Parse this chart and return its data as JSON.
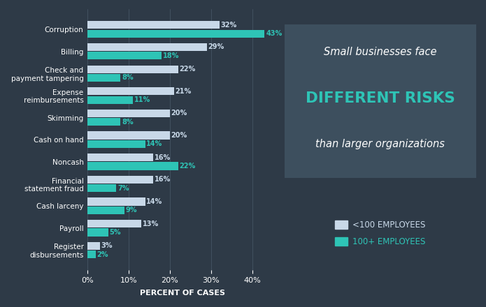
{
  "categories": [
    "Register\ndisbursements",
    "Payroll",
    "Cash larceny",
    "Financial\nstatement fraud",
    "Noncash",
    "Cash on hand",
    "Skimming",
    "Expense\nreimbursements",
    "Check and\npayment tampering",
    "Billing",
    "Corruption"
  ],
  "less100": [
    3,
    13,
    14,
    16,
    16,
    20,
    20,
    21,
    22,
    29,
    32
  ],
  "more100": [
    2,
    5,
    9,
    7,
    22,
    14,
    8,
    11,
    8,
    18,
    43
  ],
  "bg_color": "#2e3a47",
  "bar_color_less100": "#c8d8e8",
  "bar_color_more100": "#2ec4b6",
  "text_color": "#ffffff",
  "label_color_less100": "#c8d8e8",
  "label_color_more100": "#2ec4b6",
  "xlabel": "PERCENT OF CASES",
  "xlim": [
    0,
    46
  ],
  "xticks": [
    0,
    10,
    20,
    30,
    40
  ],
  "xtick_labels": [
    "0%",
    "10%",
    "20%",
    "30%",
    "40%"
  ],
  "legend_less100": "<100 EMPLOYEES",
  "legend_more100": "100+ EMPLOYEES",
  "box_color": "#3d4f5e",
  "title_line1": "Small businesses face",
  "title_line2": "DIFFERENT RISKS",
  "title_line3": "than larger organizations",
  "bar_height": 0.35,
  "bar_gap": 0.04
}
